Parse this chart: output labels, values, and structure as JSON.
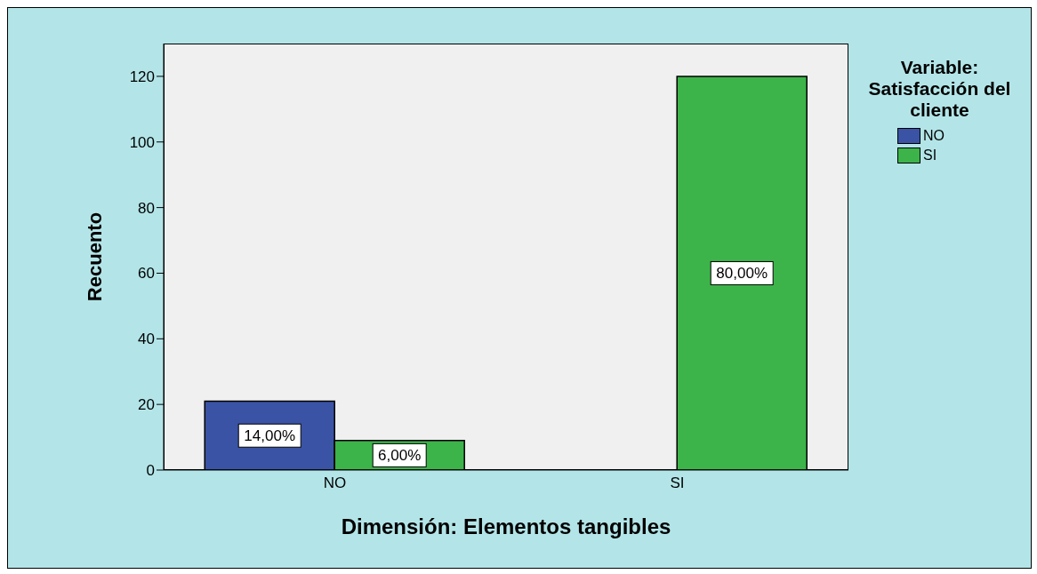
{
  "chart_data": {
    "type": "bar",
    "xlabel": "Dimensión: Elementos tangibles",
    "ylabel": "Recuento",
    "legend_title": "Variable: Satisfacción del cliente",
    "categories": [
      "NO",
      "SI"
    ],
    "series": [
      {
        "name": "NO",
        "color": "#3a53a4",
        "values": [
          21,
          null
        ]
      },
      {
        "name": "SI",
        "color": "#3cb44a",
        "values": [
          9,
          120
        ]
      }
    ],
    "annotations": [
      {
        "text": "14,00%",
        "x": "NO",
        "y": 10.5
      },
      {
        "text": "6,00%",
        "x": "NO",
        "y": 4.5
      },
      {
        "text": "80,00%",
        "x": "SI",
        "y": 60
      }
    ],
    "ylim": [
      0,
      130
    ],
    "yticks": [
      0,
      20,
      40,
      60,
      80,
      100,
      120
    ],
    "grid": false,
    "legend": "right"
  }
}
